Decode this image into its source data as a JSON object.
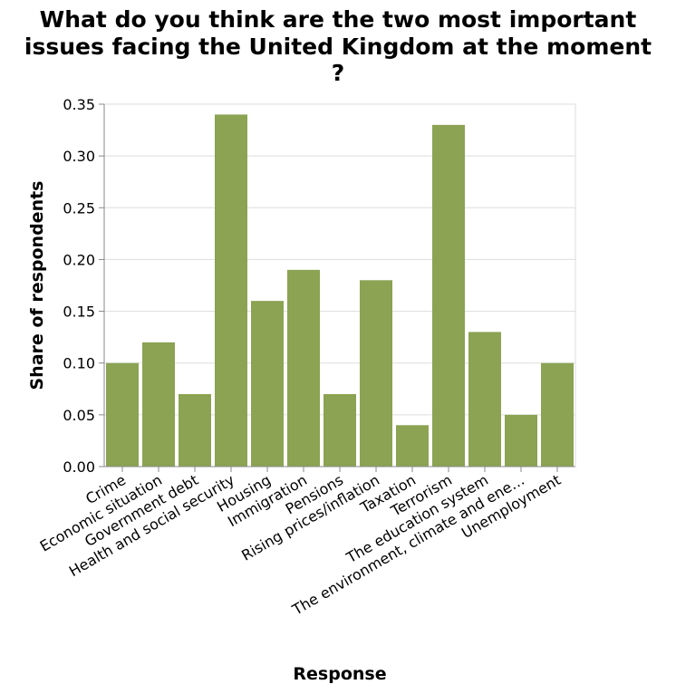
{
  "chart_data": {
    "type": "bar",
    "title_lines": [
      "What do you think are the two most important",
      "issues facing the United Kingdom at the moment",
      "?"
    ],
    "xlabel": "Response",
    "ylabel": "Share of respondents",
    "ylim": [
      0,
      0.35
    ],
    "yticks": [
      "0.00",
      "0.05",
      "0.10",
      "0.15",
      "0.20",
      "0.25",
      "0.30",
      "0.35"
    ],
    "grid": true,
    "bar_color": "#8ba352",
    "categories": [
      "Crime",
      "Economic situation",
      "Government debt",
      "Health and social security",
      "Housing",
      "Immigration",
      "Pensions",
      "Rising prices/inflation",
      "Taxation",
      "Terrorism",
      "The education system",
      "The environment, climate and ene…",
      "Unemployment"
    ],
    "values": [
      0.1,
      0.12,
      0.07,
      0.34,
      0.16,
      0.19,
      0.07,
      0.18,
      0.04,
      0.33,
      0.13,
      0.05,
      0.1
    ]
  }
}
